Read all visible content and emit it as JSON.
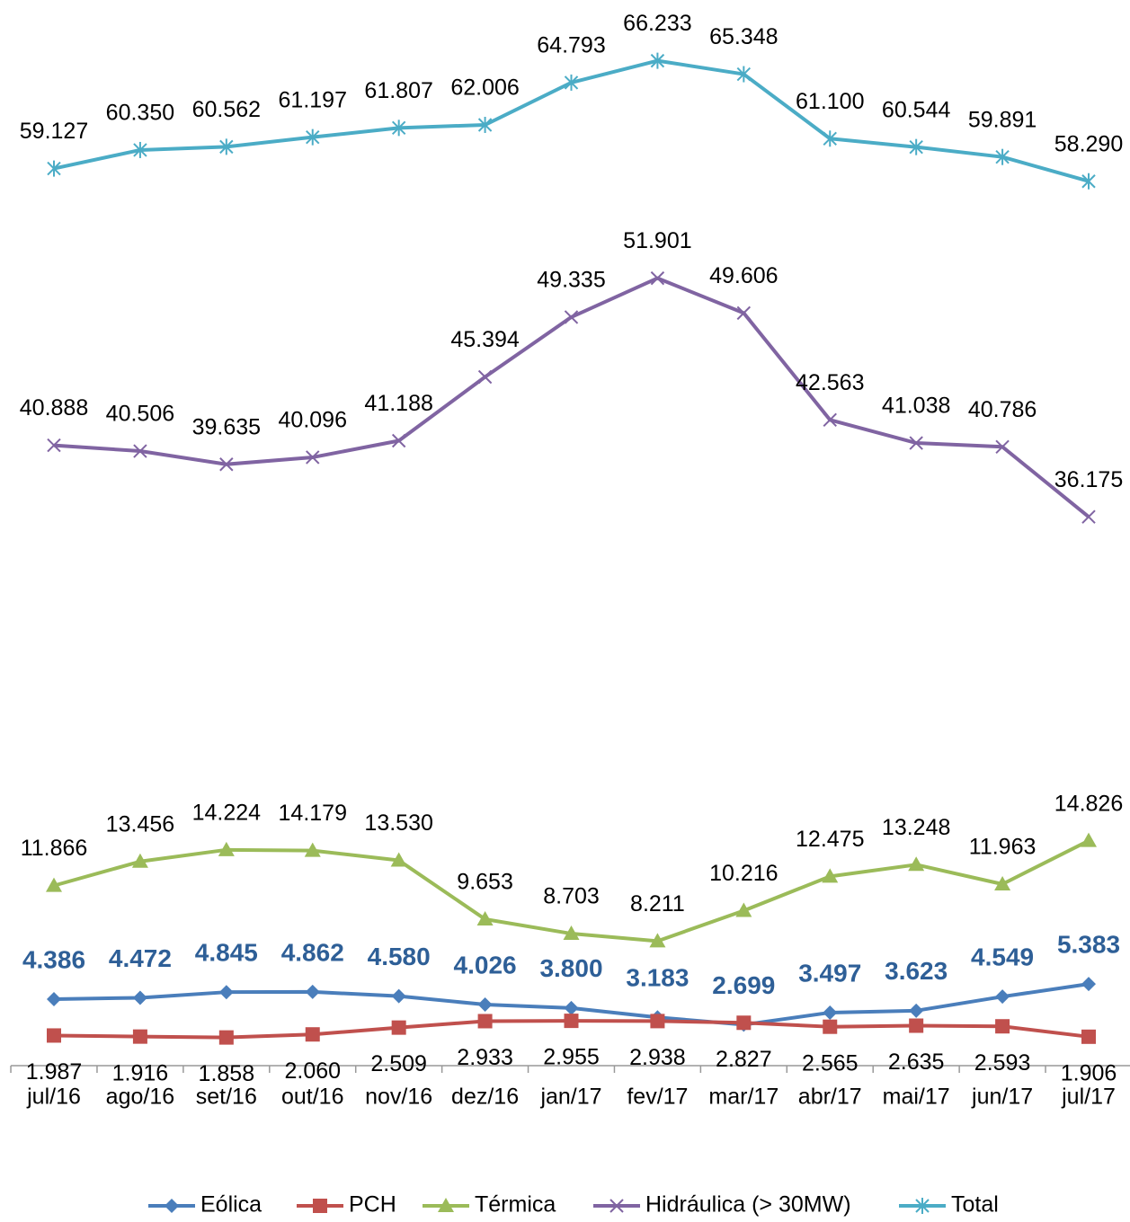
{
  "chart_data": {
    "type": "line",
    "categories": [
      "jul/16",
      "ago/16",
      "set/16",
      "out/16",
      "nov/16",
      "dez/16",
      "jan/17",
      "fev/17",
      "mar/17",
      "abr/17",
      "mai/17",
      "jun/17",
      "jul/17"
    ],
    "ylim": [
      0,
      70000
    ],
    "legend": "bottom",
    "series": [
      {
        "name": "Eólica",
        "color": "#4a7ebb",
        "marker": "diamond",
        "values": [
          4386,
          4472,
          4845,
          4862,
          4580,
          4026,
          3800,
          3183,
          2699,
          3497,
          3623,
          4549,
          5383
        ],
        "value_labels": [
          "4.386",
          "4.472",
          "4.845",
          "4.862",
          "4.580",
          "4.026",
          "3.800",
          "3.183",
          "2.699",
          "3.497",
          "3.623",
          "4.549",
          "5.383"
        ]
      },
      {
        "name": "PCH",
        "color": "#c0504d",
        "marker": "square",
        "values": [
          1987,
          1916,
          1858,
          2060,
          2509,
          2933,
          2955,
          2938,
          2827,
          2565,
          2635,
          2593,
          1906
        ],
        "value_labels": [
          "1.987",
          "1.916",
          "1.858",
          "2.060",
          "2.509",
          "2.933",
          "2.955",
          "2.938",
          "2.827",
          "2.565",
          "2.635",
          "2.593",
          "1.906"
        ]
      },
      {
        "name": "Térmica",
        "color": "#9bbb59",
        "marker": "triangle",
        "values": [
          11866,
          13456,
          14224,
          14179,
          13530,
          9653,
          8703,
          8211,
          10216,
          12475,
          13248,
          11963,
          14826
        ],
        "value_labels": [
          "11.866",
          "13.456",
          "14.224",
          "14.179",
          "13.530",
          "9.653",
          "8.703",
          "8.211",
          "10.216",
          "12.475",
          "13.248",
          "11.963",
          "14.826"
        ]
      },
      {
        "name": "Hidráulica (> 30MW)",
        "color": "#8064a2",
        "marker": "x",
        "values": [
          40888,
          40506,
          39635,
          40096,
          41188,
          45394,
          49335,
          51901,
          49606,
          42563,
          41038,
          40786,
          36175
        ],
        "value_labels": [
          "40.888",
          "40.506",
          "39.635",
          "40.096",
          "41.188",
          "45.394",
          "49.335",
          "51.901",
          "49.606",
          "42.563",
          "41.038",
          "40.786",
          "36.175"
        ]
      },
      {
        "name": "Total",
        "color": "#4bacc6",
        "marker": "star",
        "values": [
          59127,
          60350,
          60562,
          61197,
          61807,
          62006,
          64793,
          66233,
          65348,
          61100,
          60544,
          59891,
          58290
        ],
        "value_labels": [
          "59.127",
          "60.350",
          "60.562",
          "61.197",
          "61.807",
          "62.006",
          "64.793",
          "66.233",
          "65.348",
          "61.100",
          "60.544",
          "59.891",
          "58.290"
        ]
      }
    ]
  }
}
